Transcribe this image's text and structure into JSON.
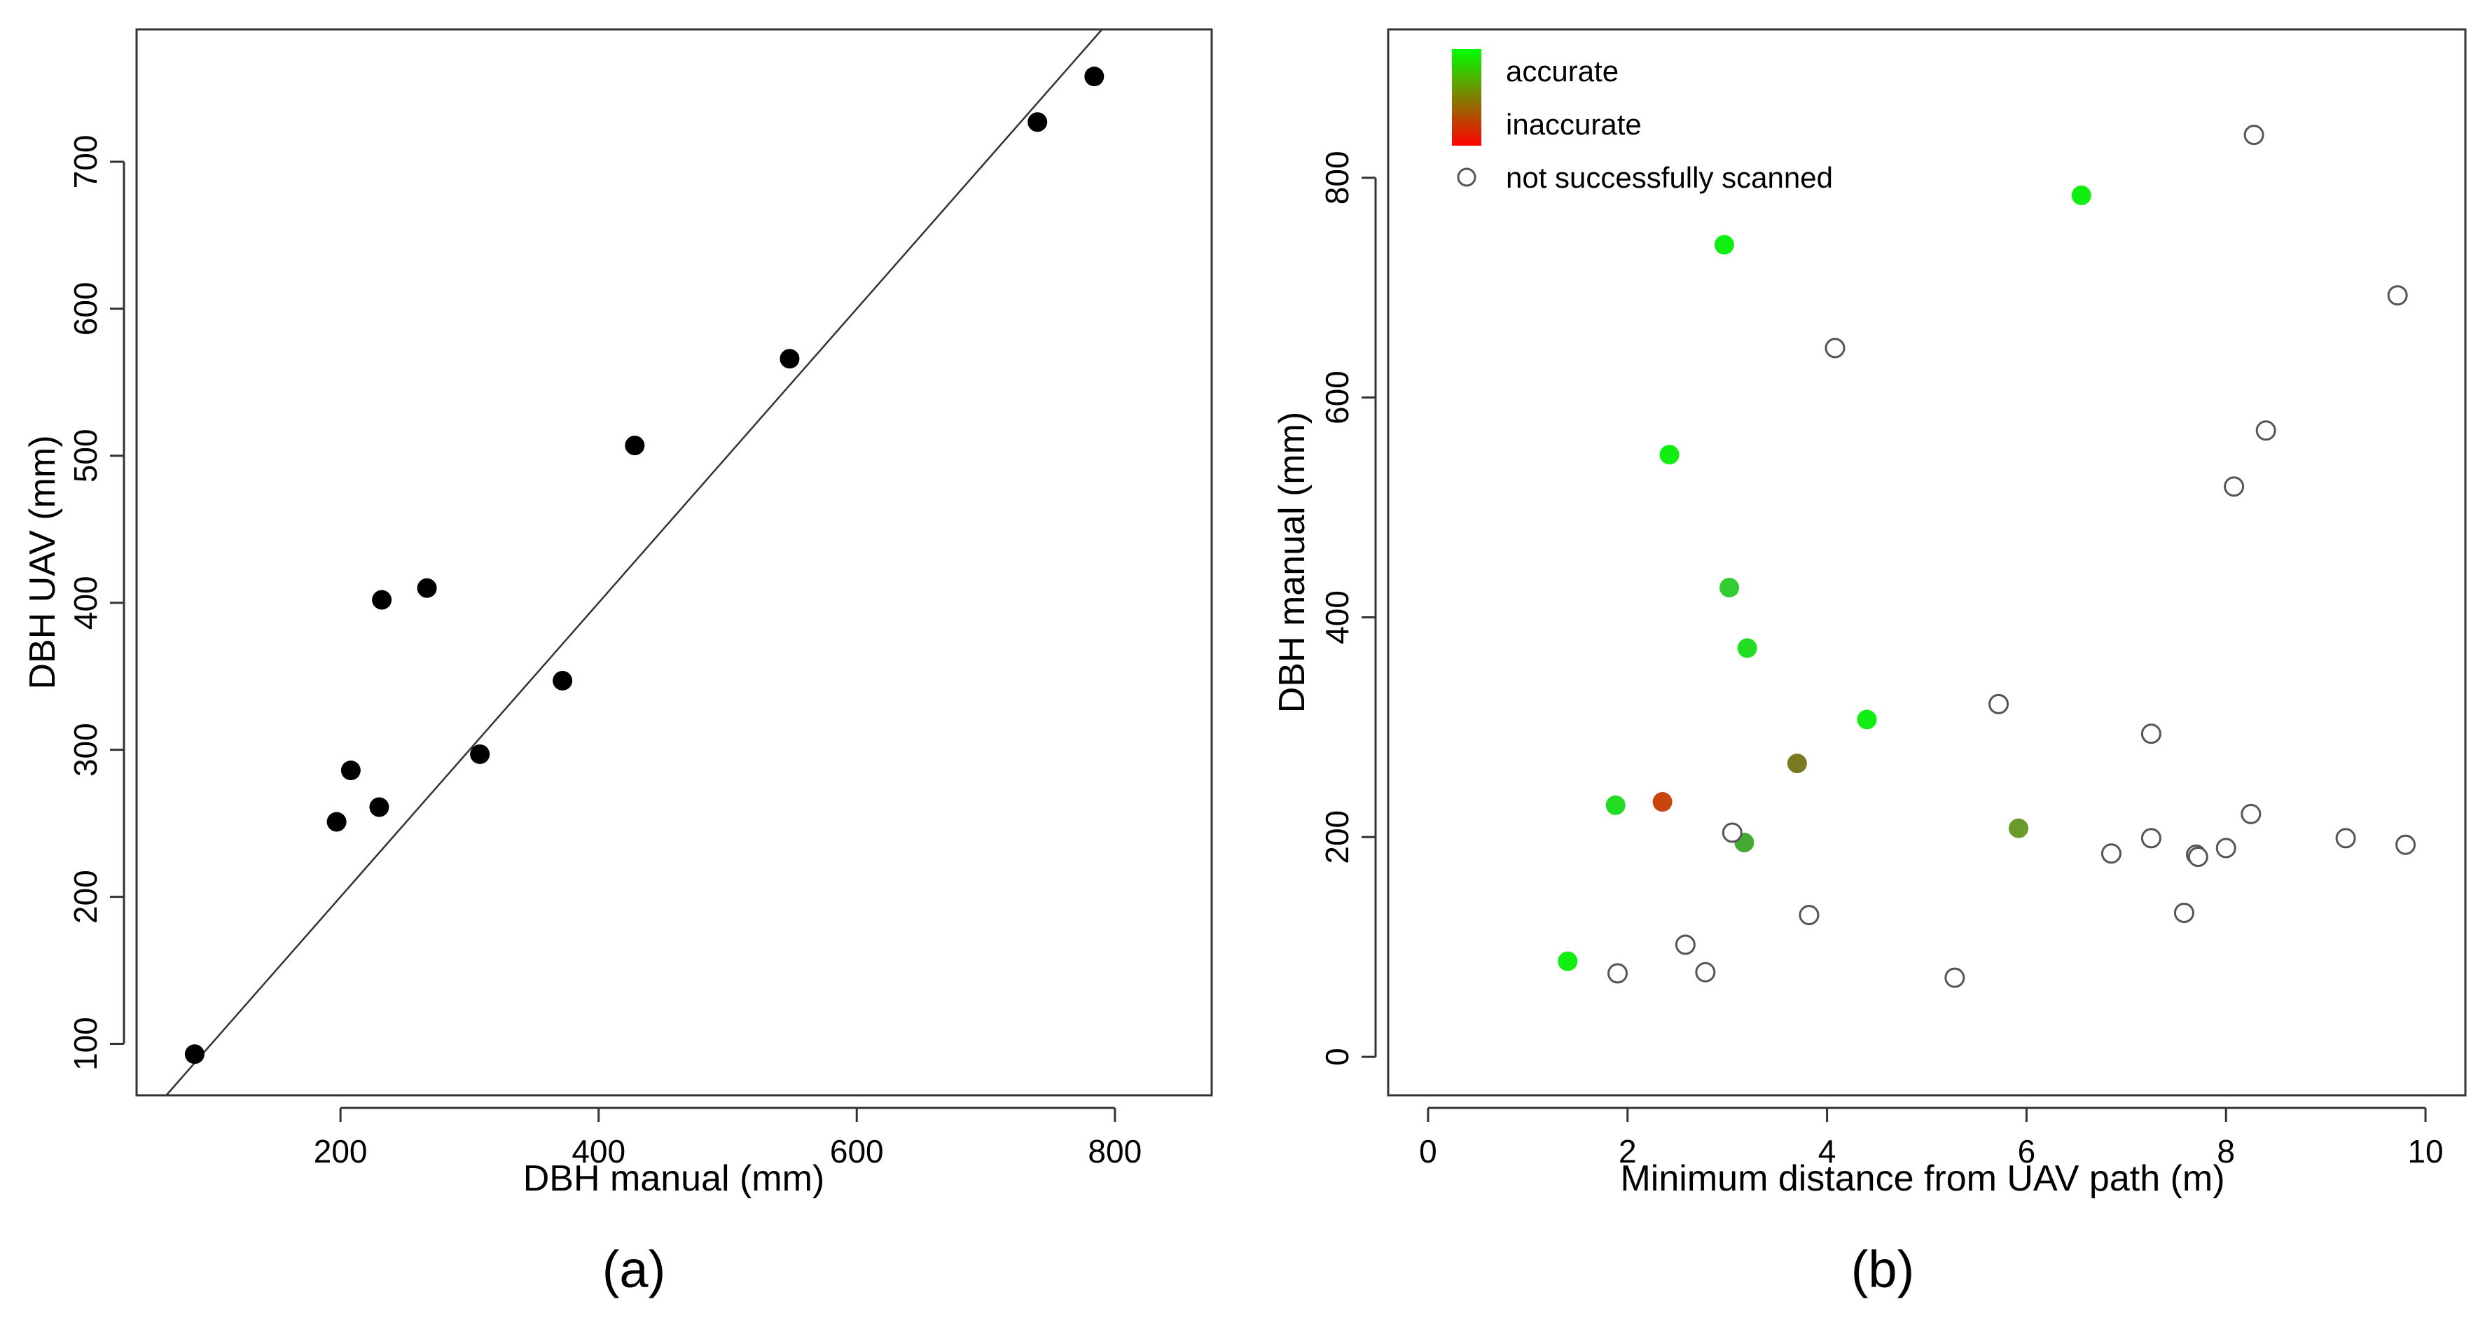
{
  "chart_data": [
    {
      "type": "scatter",
      "panel_label": "(a)",
      "xlabel": "DBH manual (mm)",
      "ylabel": "DBH UAV (mm)",
      "xlim": [
        42,
        875
      ],
      "ylim": [
        65,
        790
      ],
      "xticks": [
        200,
        400,
        600,
        800
      ],
      "yticks": [
        100,
        200,
        300,
        400,
        500,
        600,
        700
      ],
      "grid": false,
      "series": [
        {
          "points": [
            {
              "x": 87,
              "y": 93
            },
            {
              "x": 197,
              "y": 251
            },
            {
              "x": 208,
              "y": 286
            },
            {
              "x": 230,
              "y": 261
            },
            {
              "x": 232,
              "y": 402
            },
            {
              "x": 267,
              "y": 410
            },
            {
              "x": 308,
              "y": 297
            },
            {
              "x": 372,
              "y": 347
            },
            {
              "x": 428,
              "y": 507
            },
            {
              "x": 548,
              "y": 566
            },
            {
              "x": 740,
              "y": 727
            },
            {
              "x": 784,
              "y": 758
            }
          ],
          "color": "#000000"
        }
      ],
      "reference_line": {
        "type": "identity",
        "slope": 1,
        "intercept": 0,
        "color": "#333333"
      }
    },
    {
      "type": "scatter",
      "panel_label": "(b)",
      "xlabel": "Minimum distance from UAV path (m)",
      "ylabel": "DBH manual (mm)",
      "xlim": [
        -0.4,
        10.4
      ],
      "ylim": [
        -35,
        935
      ],
      "xticks": [
        0,
        2,
        4,
        6,
        8,
        10
      ],
      "yticks": [
        0,
        200,
        400,
        600,
        800
      ],
      "grid": false,
      "legend": {
        "position": "top-left",
        "entries": [
          {
            "label": "accurate",
            "color": "#00ff00"
          },
          {
            "label": "inaccurate",
            "color": "#ff0000"
          },
          {
            "label": "not successfully scanned",
            "color": "#555555",
            "style": "open-circle"
          }
        ],
        "gradient": [
          "#00ff00",
          "#ff0000"
        ]
      },
      "series": [
        {
          "status": "scanned",
          "points": [
            {
              "x": 1.4,
              "y": 87,
              "color": "#11ee11"
            },
            {
              "x": 1.88,
              "y": 229,
              "color": "#22dd22"
            },
            {
              "x": 2.35,
              "y": 232,
              "color": "#c8450d"
            },
            {
              "x": 2.42,
              "y": 548,
              "color": "#11ee11"
            },
            {
              "x": 2.97,
              "y": 739,
              "color": "#11ee11"
            },
            {
              "x": 3.02,
              "y": 427,
              "color": "#33cc33"
            },
            {
              "x": 3.17,
              "y": 195,
              "color": "#44aa33"
            },
            {
              "x": 3.2,
              "y": 372,
              "color": "#22dd22"
            },
            {
              "x": 3.7,
              "y": 267,
              "color": "#7a7a22"
            },
            {
              "x": 4.4,
              "y": 307,
              "color": "#11ee11"
            },
            {
              "x": 5.92,
              "y": 208,
              "color": "#6b9a2c"
            },
            {
              "x": 6.55,
              "y": 784,
              "color": "#11ee11"
            }
          ]
        },
        {
          "status": "not successfully scanned",
          "points": [
            {
              "x": 1.9,
              "y": 76
            },
            {
              "x": 2.58,
              "y": 102
            },
            {
              "x": 2.78,
              "y": 77
            },
            {
              "x": 3.05,
              "y": 204
            },
            {
              "x": 3.82,
              "y": 129
            },
            {
              "x": 4.08,
              "y": 645
            },
            {
              "x": 5.28,
              "y": 72
            },
            {
              "x": 5.72,
              "y": 321
            },
            {
              "x": 6.85,
              "y": 185
            },
            {
              "x": 7.25,
              "y": 199
            },
            {
              "x": 7.25,
              "y": 294
            },
            {
              "x": 7.58,
              "y": 131
            },
            {
              "x": 7.7,
              "y": 184
            },
            {
              "x": 7.72,
              "y": 182
            },
            {
              "x": 8.0,
              "y": 190
            },
            {
              "x": 8.08,
              "y": 519
            },
            {
              "x": 8.25,
              "y": 221
            },
            {
              "x": 8.28,
              "y": 839
            },
            {
              "x": 8.4,
              "y": 570
            },
            {
              "x": 9.2,
              "y": 199
            },
            {
              "x": 9.72,
              "y": 693
            },
            {
              "x": 9.8,
              "y": 193
            }
          ]
        }
      ]
    }
  ]
}
